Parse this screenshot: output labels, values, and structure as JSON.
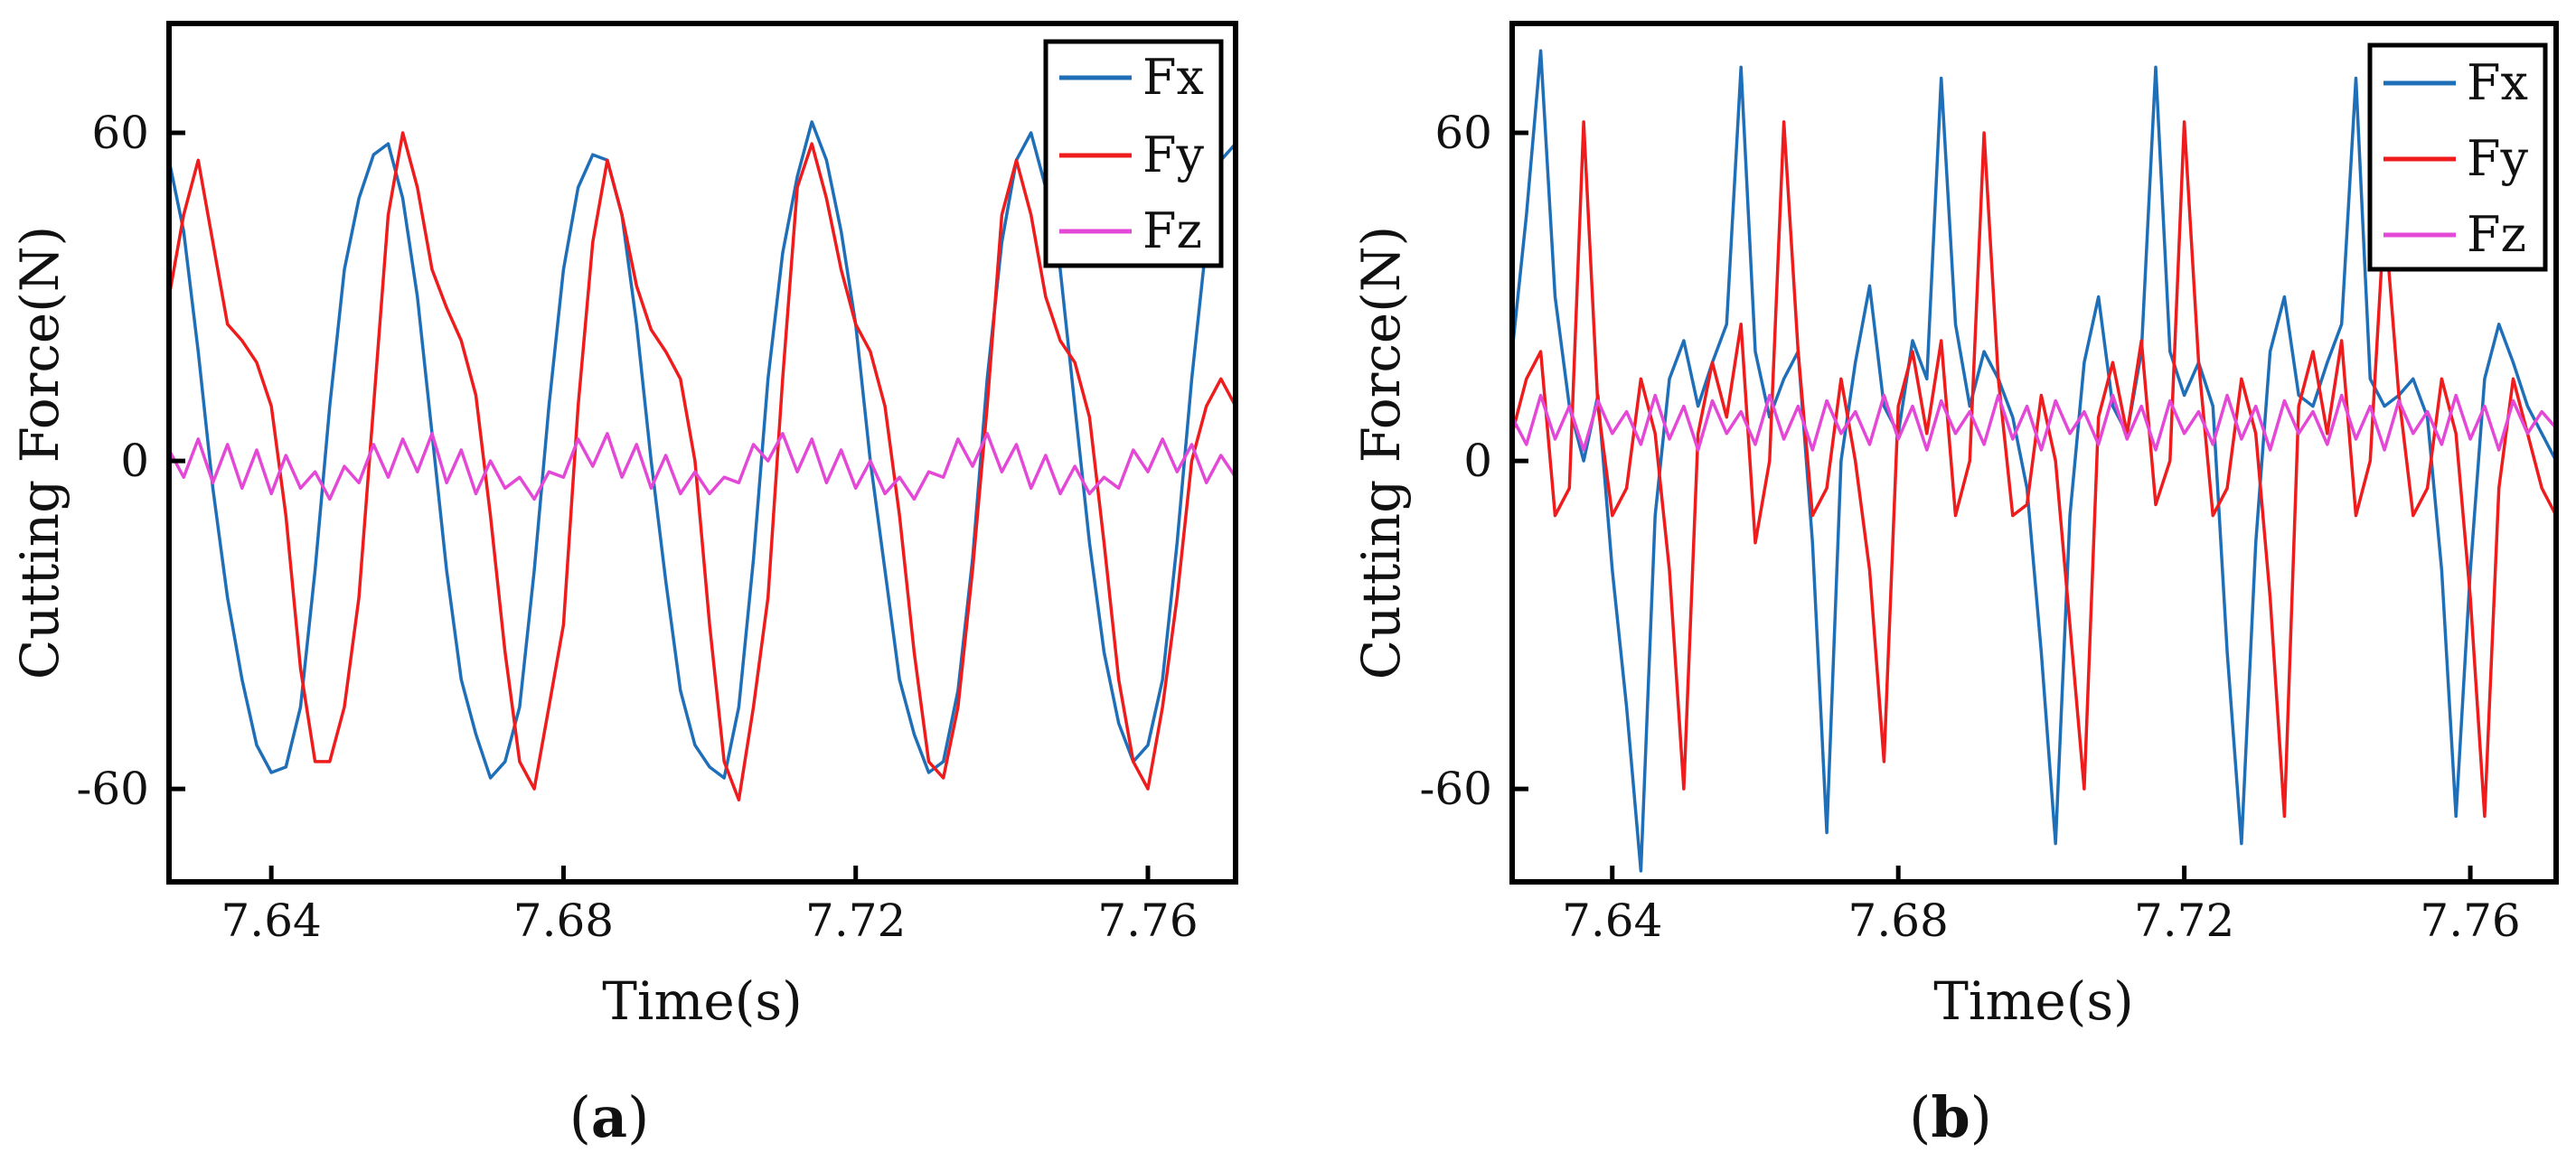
{
  "colors": {
    "Fx": "#1f6fb8",
    "Fy": "#ee1c1c",
    "Fz": "#e348d6",
    "frame": "#000000"
  },
  "chart_data": [
    {
      "id": "a",
      "type": "line",
      "panel_label_open": "(",
      "panel_label_letter": "a",
      "panel_label_close": ")",
      "xlabel": "Time(s)",
      "ylabel": "Cutting Force(N)",
      "xlim": [
        7.626,
        7.772
      ],
      "ylim": [
        -77,
        80
      ],
      "xticks": [
        7.64,
        7.68,
        7.72,
        7.76
      ],
      "xtick_labels": [
        "7.64",
        "7.68",
        "7.72",
        "7.76"
      ],
      "yticks": [
        60,
        0,
        -60
      ],
      "ytick_labels": [
        "60",
        "0",
        "-60"
      ],
      "legend": [
        "Fx",
        "Fy",
        "Fz"
      ],
      "legend_position": "top-right",
      "series": [
        {
          "name": "Fx",
          "color": "#1f6fb8",
          "x": [
            7.626,
            7.628,
            7.63,
            7.632,
            7.634,
            7.636,
            7.638,
            7.64,
            7.642,
            7.644,
            7.646,
            7.648,
            7.65,
            7.652,
            7.654,
            7.656,
            7.658,
            7.66,
            7.662,
            7.664,
            7.666,
            7.668,
            7.67,
            7.672,
            7.674,
            7.676,
            7.678,
            7.68,
            7.682,
            7.684,
            7.686,
            7.688,
            7.69,
            7.692,
            7.694,
            7.696,
            7.698,
            7.7,
            7.702,
            7.704,
            7.706,
            7.708,
            7.71,
            7.712,
            7.714,
            7.716,
            7.718,
            7.72,
            7.722,
            7.724,
            7.726,
            7.728,
            7.73,
            7.732,
            7.734,
            7.736,
            7.738,
            7.74,
            7.742,
            7.744,
            7.746,
            7.748,
            7.75,
            7.752,
            7.754,
            7.756,
            7.758,
            7.76,
            7.762,
            7.764,
            7.766,
            7.768,
            7.77,
            7.772
          ],
          "y": [
            55,
            42,
            20,
            -5,
            -25,
            -40,
            -52,
            -57,
            -56,
            -45,
            -20,
            10,
            35,
            48,
            56,
            58,
            48,
            30,
            5,
            -20,
            -40,
            -50,
            -58,
            -55,
            -45,
            -20,
            10,
            35,
            50,
            56,
            55,
            45,
            25,
            0,
            -22,
            -42,
            -52,
            -56,
            -58,
            -45,
            -18,
            15,
            38,
            52,
            62,
            55,
            42,
            25,
            0,
            -20,
            -40,
            -50,
            -57,
            -55,
            -42,
            -18,
            15,
            40,
            55,
            60,
            50,
            35,
            10,
            -15,
            -35,
            -48,
            -55,
            -52,
            -40,
            -15,
            15,
            40,
            55,
            58
          ]
        },
        {
          "name": "Fy",
          "color": "#ee1c1c",
          "x": [
            7.626,
            7.628,
            7.63,
            7.632,
            7.634,
            7.636,
            7.638,
            7.64,
            7.642,
            7.644,
            7.646,
            7.648,
            7.65,
            7.652,
            7.654,
            7.656,
            7.658,
            7.66,
            7.662,
            7.664,
            7.666,
            7.668,
            7.67,
            7.672,
            7.674,
            7.676,
            7.678,
            7.68,
            7.682,
            7.684,
            7.686,
            7.688,
            7.69,
            7.692,
            7.694,
            7.696,
            7.698,
            7.7,
            7.702,
            7.704,
            7.706,
            7.708,
            7.71,
            7.712,
            7.714,
            7.716,
            7.718,
            7.72,
            7.722,
            7.724,
            7.726,
            7.728,
            7.73,
            7.732,
            7.734,
            7.736,
            7.738,
            7.74,
            7.742,
            7.744,
            7.746,
            7.748,
            7.75,
            7.752,
            7.754,
            7.756,
            7.758,
            7.76,
            7.762,
            7.764,
            7.766,
            7.768,
            7.77,
            7.772
          ],
          "y": [
            30,
            45,
            55,
            40,
            25,
            22,
            18,
            10,
            -10,
            -38,
            -55,
            -55,
            -45,
            -25,
            10,
            45,
            60,
            50,
            35,
            28,
            22,
            12,
            -10,
            -35,
            -55,
            -60,
            -45,
            -30,
            10,
            40,
            55,
            45,
            32,
            24,
            20,
            15,
            0,
            -30,
            -55,
            -62,
            -45,
            -25,
            15,
            50,
            58,
            48,
            35,
            25,
            20,
            10,
            -10,
            -35,
            -55,
            -58,
            -45,
            -20,
            10,
            45,
            55,
            45,
            30,
            22,
            18,
            8,
            -15,
            -40,
            -55,
            -60,
            -45,
            -25,
            0,
            10,
            15,
            10
          ]
        },
        {
          "name": "Fz",
          "color": "#e348d6",
          "x": [
            7.626,
            7.628,
            7.63,
            7.632,
            7.634,
            7.636,
            7.638,
            7.64,
            7.642,
            7.644,
            7.646,
            7.648,
            7.65,
            7.652,
            7.654,
            7.656,
            7.658,
            7.66,
            7.662,
            7.664,
            7.666,
            7.668,
            7.67,
            7.672,
            7.674,
            7.676,
            7.678,
            7.68,
            7.682,
            7.684,
            7.686,
            7.688,
            7.69,
            7.692,
            7.694,
            7.696,
            7.698,
            7.7,
            7.702,
            7.704,
            7.706,
            7.708,
            7.71,
            7.712,
            7.714,
            7.716,
            7.718,
            7.72,
            7.722,
            7.724,
            7.726,
            7.728,
            7.73,
            7.732,
            7.734,
            7.736,
            7.738,
            7.74,
            7.742,
            7.744,
            7.746,
            7.748,
            7.75,
            7.752,
            7.754,
            7.756,
            7.758,
            7.76,
            7.762,
            7.764,
            7.766,
            7.768,
            7.77,
            7.772
          ],
          "y": [
            2,
            -3,
            4,
            -4,
            3,
            -5,
            2,
            -6,
            1,
            -5,
            -2,
            -7,
            -1,
            -4,
            3,
            -3,
            4,
            -2,
            5,
            -4,
            2,
            -6,
            0,
            -5,
            -3,
            -7,
            -2,
            -3,
            4,
            -1,
            5,
            -3,
            3,
            -5,
            1,
            -6,
            -2,
            -6,
            -3,
            -4,
            3,
            0,
            5,
            -2,
            4,
            -4,
            2,
            -5,
            0,
            -6,
            -3,
            -7,
            -2,
            -3,
            4,
            -1,
            5,
            -2,
            3,
            -5,
            1,
            -6,
            -1,
            -6,
            -3,
            -5,
            2,
            -2,
            4,
            -2,
            3,
            -4,
            1,
            -3
          ]
        }
      ]
    },
    {
      "id": "b",
      "type": "line",
      "panel_label_open": "(",
      "panel_label_letter": "b",
      "panel_label_close": ")",
      "xlabel": "Time(s)",
      "ylabel": "Cutting Force(N)",
      "xlim": [
        7.626,
        7.772
      ],
      "ylim": [
        -77,
        80
      ],
      "xticks": [
        7.64,
        7.68,
        7.72,
        7.76
      ],
      "xtick_labels": [
        "7.64",
        "7.68",
        "7.72",
        "7.76"
      ],
      "yticks": [
        60,
        0,
        -60
      ],
      "ytick_labels": [
        "60",
        "0",
        "-60"
      ],
      "legend": [
        "Fx",
        "Fy",
        "Fz"
      ],
      "legend_position": "top-right",
      "series": [
        {
          "name": "Fx",
          "color": "#1f6fb8",
          "x": [
            7.626,
            7.628,
            7.63,
            7.632,
            7.634,
            7.636,
            7.638,
            7.64,
            7.642,
            7.644,
            7.646,
            7.648,
            7.65,
            7.652,
            7.654,
            7.656,
            7.658,
            7.66,
            7.662,
            7.664,
            7.666,
            7.668,
            7.67,
            7.672,
            7.674,
            7.676,
            7.678,
            7.68,
            7.682,
            7.684,
            7.686,
            7.688,
            7.69,
            7.692,
            7.694,
            7.696,
            7.698,
            7.7,
            7.702,
            7.704,
            7.706,
            7.708,
            7.71,
            7.712,
            7.714,
            7.716,
            7.718,
            7.72,
            7.722,
            7.724,
            7.726,
            7.728,
            7.73,
            7.732,
            7.734,
            7.736,
            7.738,
            7.74,
            7.742,
            7.744,
            7.746,
            7.748,
            7.75,
            7.752,
            7.754,
            7.756,
            7.758,
            7.76,
            7.762,
            7.764,
            7.766,
            7.768,
            7.77,
            7.772
          ],
          "y": [
            20,
            45,
            75,
            30,
            10,
            0,
            12,
            -20,
            -45,
            -75,
            -10,
            15,
            22,
            10,
            18,
            25,
            72,
            20,
            8,
            15,
            20,
            -15,
            -68,
            0,
            18,
            32,
            10,
            5,
            22,
            15,
            70,
            25,
            10,
            20,
            15,
            8,
            -5,
            -35,
            -70,
            -10,
            18,
            30,
            10,
            5,
            20,
            72,
            20,
            12,
            18,
            10,
            -35,
            -70,
            -15,
            20,
            30,
            12,
            10,
            18,
            25,
            70,
            15,
            10,
            12,
            15,
            8,
            -20,
            -65,
            -20,
            15,
            25,
            18,
            10,
            5,
            0
          ]
        },
        {
          "name": "Fy",
          "color": "#ee1c1c",
          "x": [
            7.626,
            7.628,
            7.63,
            7.632,
            7.634,
            7.636,
            7.638,
            7.64,
            7.642,
            7.644,
            7.646,
            7.648,
            7.65,
            7.652,
            7.654,
            7.656,
            7.658,
            7.66,
            7.662,
            7.664,
            7.666,
            7.668,
            7.67,
            7.672,
            7.674,
            7.676,
            7.678,
            7.68,
            7.682,
            7.684,
            7.686,
            7.688,
            7.69,
            7.692,
            7.694,
            7.696,
            7.698,
            7.7,
            7.702,
            7.704,
            7.706,
            7.708,
            7.71,
            7.712,
            7.714,
            7.716,
            7.718,
            7.72,
            7.722,
            7.724,
            7.726,
            7.728,
            7.73,
            7.732,
            7.734,
            7.736,
            7.738,
            7.74,
            7.742,
            7.744,
            7.746,
            7.748,
            7.75,
            7.752,
            7.754,
            7.756,
            7.758,
            7.76,
            7.762,
            7.764,
            7.766,
            7.768,
            7.77,
            7.772
          ],
          "y": [
            5,
            15,
            20,
            -10,
            -5,
            62,
            10,
            -10,
            -5,
            15,
            5,
            -20,
            -60,
            5,
            18,
            8,
            25,
            -15,
            0,
            62,
            20,
            -10,
            -5,
            15,
            0,
            -20,
            -55,
            10,
            20,
            5,
            22,
            -10,
            0,
            60,
            15,
            -10,
            -8,
            12,
            0,
            -30,
            -60,
            8,
            18,
            5,
            22,
            -8,
            0,
            62,
            18,
            -10,
            -5,
            15,
            5,
            -25,
            -65,
            10,
            20,
            5,
            22,
            -10,
            0,
            45,
            12,
            -10,
            -5,
            15,
            5,
            -25,
            -65,
            -5,
            15,
            5,
            -5,
            -10
          ]
        },
        {
          "name": "Fz",
          "color": "#e348d6",
          "x": [
            7.626,
            7.628,
            7.63,
            7.632,
            7.634,
            7.636,
            7.638,
            7.64,
            7.642,
            7.644,
            7.646,
            7.648,
            7.65,
            7.652,
            7.654,
            7.656,
            7.658,
            7.66,
            7.662,
            7.664,
            7.666,
            7.668,
            7.67,
            7.672,
            7.674,
            7.676,
            7.678,
            7.68,
            7.682,
            7.684,
            7.686,
            7.688,
            7.69,
            7.692,
            7.694,
            7.696,
            7.698,
            7.7,
            7.702,
            7.704,
            7.706,
            7.708,
            7.71,
            7.712,
            7.714,
            7.716,
            7.718,
            7.72,
            7.722,
            7.724,
            7.726,
            7.728,
            7.73,
            7.732,
            7.734,
            7.736,
            7.738,
            7.74,
            7.742,
            7.744,
            7.746,
            7.748,
            7.75,
            7.752,
            7.754,
            7.756,
            7.758,
            7.76,
            7.762,
            7.764,
            7.766,
            7.768,
            7.77,
            7.772
          ],
          "y": [
            8,
            3,
            12,
            4,
            10,
            2,
            11,
            5,
            9,
            3,
            12,
            4,
            10,
            2,
            11,
            5,
            9,
            3,
            12,
            4,
            10,
            2,
            11,
            5,
            9,
            3,
            12,
            4,
            10,
            2,
            11,
            5,
            9,
            3,
            12,
            4,
            10,
            2,
            11,
            5,
            9,
            3,
            12,
            4,
            10,
            2,
            11,
            5,
            9,
            3,
            12,
            4,
            10,
            2,
            11,
            5,
            9,
            3,
            12,
            4,
            10,
            2,
            11,
            5,
            9,
            3,
            12,
            4,
            10,
            2,
            11,
            5,
            9,
            6
          ]
        }
      ]
    }
  ]
}
